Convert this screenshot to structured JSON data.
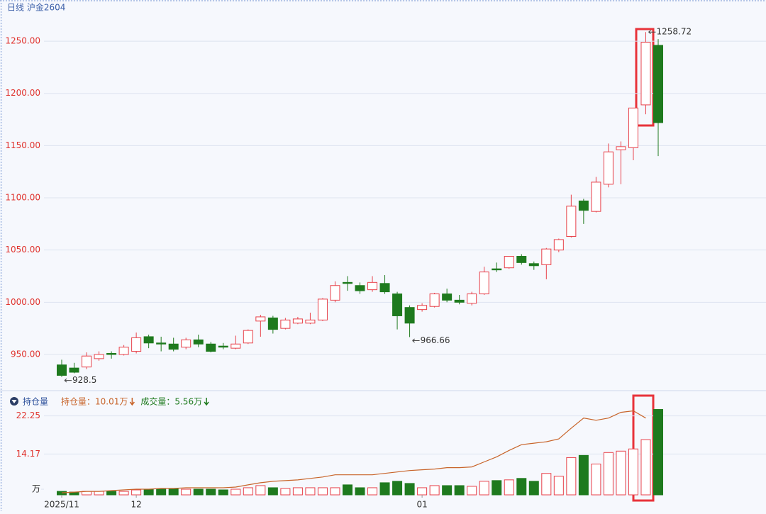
{
  "chart_data": {
    "type": "candlestick",
    "title": "日线 沪金2604",
    "categories": [
      "2025/11",
      null,
      null,
      null,
      null,
      null,
      "12",
      null,
      null,
      null,
      null,
      null,
      null,
      null,
      null,
      null,
      null,
      null,
      null,
      null,
      null,
      null,
      null,
      null,
      null,
      null,
      null,
      null,
      null,
      "01",
      null,
      null,
      null,
      null,
      null,
      null,
      null,
      null,
      null,
      null,
      null,
      null,
      null,
      null,
      null,
      null,
      null,
      null,
      null
    ],
    "open": [
      940,
      937,
      938,
      946,
      951,
      950,
      953,
      967,
      961,
      960,
      957,
      964,
      960,
      958,
      956,
      961,
      982,
      985,
      975,
      980,
      980,
      983,
      1002,
      1019,
      1016,
      1012,
      1018,
      1008,
      995,
      993,
      996,
      1008,
      1002,
      999,
      1008,
      1032,
      1033,
      1044,
      1037,
      1036,
      1050,
      1063,
      1097,
      1087,
      1113,
      1146,
      1148,
      1189,
      1246
    ],
    "high": [
      945,
      942,
      952,
      953,
      953,
      959,
      971,
      969,
      967,
      966,
      966,
      969,
      962,
      961,
      968,
      974,
      988,
      987,
      985,
      986,
      990,
      1004,
      1020,
      1025,
      1019,
      1025,
      1026,
      1010,
      997,
      999,
      1009,
      1013,
      1007,
      1010,
      1034,
      1038,
      1044,
      1046,
      1039,
      1052,
      1061,
      1103,
      1099,
      1120,
      1152,
      1154,
      1186,
      1258.72,
      1252
    ],
    "low": [
      928.5,
      932,
      936,
      944,
      946,
      949,
      951,
      956,
      953,
      953,
      955,
      957,
      952,
      955,
      955,
      960,
      967,
      970,
      974,
      979,
      979,
      982,
      1000,
      1011,
      1008,
      1010,
      1008,
      974,
      966.66,
      991,
      995,
      1000,
      998,
      997,
      1007,
      1029,
      1032,
      1036,
      1031,
      1022,
      1048,
      1062,
      1075,
      1086,
      1110,
      1113,
      1136,
      1180,
      1140
    ],
    "close": [
      930,
      933,
      948.5,
      950,
      950,
      957,
      966,
      961,
      960,
      955,
      964,
      960,
      953,
      957,
      960,
      973,
      986,
      974,
      983,
      984,
      983,
      1003,
      1016,
      1018,
      1011,
      1019,
      1010,
      987,
      980,
      997,
      1008,
      1002,
      1000,
      1008,
      1029,
      1031,
      1044,
      1038,
      1035,
      1051,
      1060,
      1092,
      1088,
      1115,
      1144,
      1149,
      1186,
      1249,
      1172
    ],
    "up_color": "#e8414a",
    "down_color": "#1e7a1e",
    "ylim": [
      917.4,
      1277.2
    ],
    "yticks": [
      {
        "value": 950,
        "label": "950.00"
      },
      {
        "value": 1000,
        "label": "1000.00"
      },
      {
        "value": 1050,
        "label": "1050.00"
      },
      {
        "value": 1100,
        "label": "1100.00"
      },
      {
        "value": 1150,
        "label": "1150.00"
      },
      {
        "value": 1200,
        "label": "1200.00"
      },
      {
        "value": 1250,
        "label": "1250.00"
      }
    ],
    "grid": true,
    "annotations": [
      {
        "value": 1258.72,
        "label": "1258.72"
      },
      {
        "value": 928.5,
        "label": "928.5"
      },
      {
        "value": 966.66,
        "label": "966.66"
      }
    ],
    "volume": {
      "title": "持仓量",
      "ylim": [
        5.5,
        24
      ],
      "yticks": [
        {
          "value": 6.7,
          "label": "万"
        },
        14.17,
        22.25
      ],
      "series": [
        {
          "name": "持仓量：10.01万",
          "color": "#c8642a",
          "values": [
            5.94,
            6.09,
            6.24,
            6.24,
            6.4,
            6.55,
            6.7,
            6.7,
            6.85,
            6.85,
            7.01,
            7.01,
            7.01,
            7.01,
            7.16,
            7.62,
            8.07,
            8.38,
            8.53,
            8.68,
            8.99,
            9.29,
            9.75,
            9.75,
            9.75,
            9.75,
            10.05,
            10.36,
            10.66,
            10.82,
            10.97,
            11.27,
            11.27,
            11.43,
            12.49,
            13.56,
            14.93,
            16.15,
            16.46,
            16.76,
            17.37,
            19.66,
            21.79,
            21.33,
            21.79,
            23.01,
            23.32,
            21.79,
            null
          ]
        },
        {
          "name": "成交量：5.56万",
          "color": "#1e7a1e",
          "values": [
            6.24,
            6.09,
            6.24,
            6.24,
            6.24,
            6.24,
            6.55,
            6.7,
            6.7,
            6.85,
            6.7,
            6.7,
            6.7,
            6.55,
            6.7,
            7.01,
            7.46,
            7.01,
            6.85,
            7.01,
            7.01,
            7.01,
            7.01,
            7.62,
            7.01,
            7.01,
            8.07,
            8.38,
            7.92,
            7.01,
            7.46,
            7.46,
            7.46,
            7.31,
            8.38,
            8.53,
            8.68,
            8.99,
            8.38,
            10.05,
            9.45,
            13.41,
            13.87,
            12.04,
            14.48,
            14.78,
            15.24,
            17.22,
            23.62
          ]
        }
      ]
    }
  }
}
